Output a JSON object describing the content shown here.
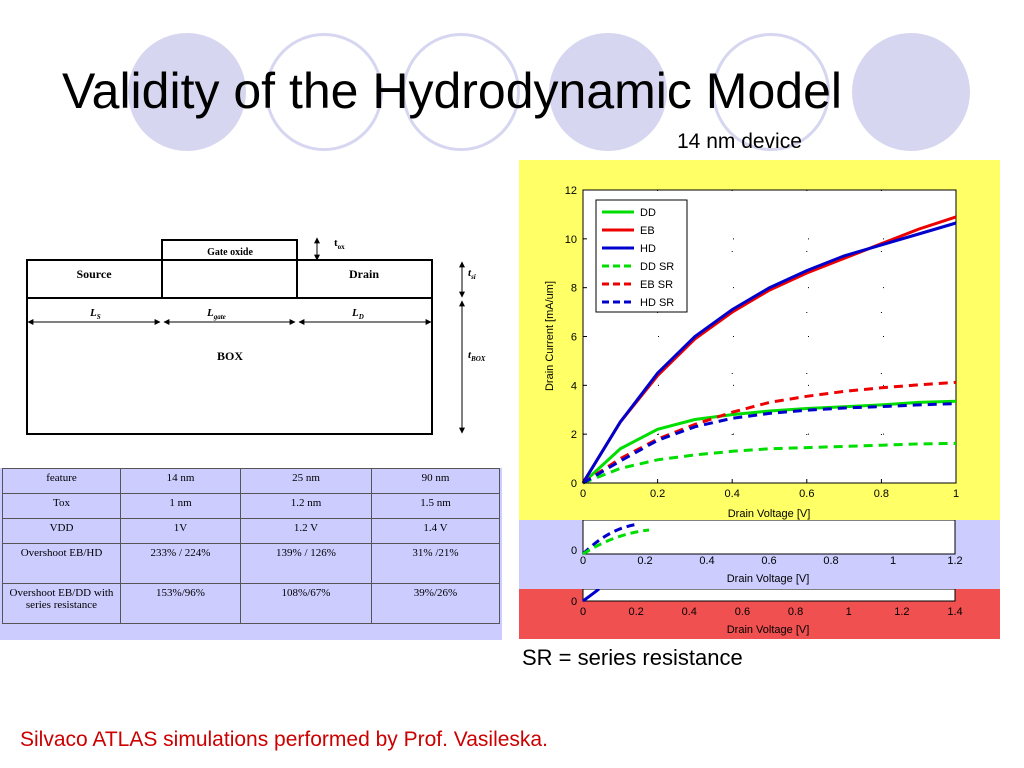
{
  "slide": {
    "title": "Validity of the Hydrodynamic Model",
    "subtitle": "14 nm device",
    "note": "SR = series resistance",
    "credit": "Silvaco ATLAS simulations performed by Prof. Vasileska.",
    "colors": {
      "circle": "#d6d6f0",
      "credit": "#cc0000",
      "yellow_panel": "#ffff66",
      "lavender_panel": "#ccccff",
      "red_panel": "#f05050",
      "table_bg": "#ccccff"
    }
  },
  "device": {
    "gate_oxide": "Gate oxide",
    "source": "Source",
    "drain": "Drain",
    "box": "BOX",
    "t_ox": "t",
    "t_ox_sub": "ox",
    "t_si": "t",
    "t_si_sub": "si",
    "t_box": "t",
    "t_box_sub": "BOX",
    "ls": "L",
    "ls_sub": "S",
    "lgate": "L",
    "lgate_sub": "gate",
    "ld": "L",
    "ld_sub": "D"
  },
  "table": {
    "headers": [
      "feature",
      "14 nm",
      "25 nm",
      "90 nm"
    ],
    "rows": [
      [
        "Tox",
        "1 nm",
        "1.2 nm",
        "1.5 nm"
      ],
      [
        "VDD",
        "1V",
        "1.2 V",
        "1.4 V"
      ],
      [
        "Overshoot EB/HD",
        "233% / 224%",
        "139% / 126%",
        "31% /21%"
      ],
      [
        "Overshoot EB/DD with series resistance",
        "153%/96%",
        "108%/67%",
        "39%/26%"
      ]
    ]
  },
  "back_charts": {
    "lavender": {
      "xlabel": "Drain Voltage [V]",
      "xticks": [
        "0",
        "0.2",
        "0.4",
        "0.6",
        "0.8",
        "1",
        "1.2"
      ],
      "y0": "0"
    },
    "red": {
      "xlabel": "Drain Voltage [V]",
      "xticks": [
        "0",
        "0.2",
        "0.4",
        "0.6",
        "0.8",
        "1",
        "1.2",
        "1.4"
      ],
      "y0": "0"
    }
  },
  "chart_data": {
    "type": "line",
    "xlabel": "Drain Voltage [V]",
    "ylabel": "Drain Current [mA/um]",
    "xlim": [
      0,
      1
    ],
    "ylim": [
      0,
      12
    ],
    "xticks": [
      0,
      0.2,
      0.4,
      0.6,
      0.8,
      1
    ],
    "yticks": [
      0,
      2,
      4,
      6,
      8,
      10,
      12
    ],
    "legend_position": "top-left",
    "x": [
      0,
      0.1,
      0.2,
      0.3,
      0.4,
      0.5,
      0.6,
      0.7,
      0.8,
      0.9,
      1.0
    ],
    "series": [
      {
        "name": "DD",
        "color": "#00dd00",
        "dash": "solid",
        "values": [
          0,
          1.4,
          2.2,
          2.6,
          2.8,
          2.95,
          3.05,
          3.12,
          3.2,
          3.3,
          3.35
        ]
      },
      {
        "name": "EB",
        "color": "#ee0000",
        "dash": "solid",
        "values": [
          0,
          2.5,
          4.4,
          5.9,
          7.0,
          7.9,
          8.6,
          9.2,
          9.8,
          10.4,
          10.9
        ]
      },
      {
        "name": "HD",
        "color": "#0000cc",
        "dash": "solid",
        "values": [
          0,
          2.5,
          4.5,
          6.0,
          7.1,
          8.0,
          8.7,
          9.3,
          9.75,
          10.2,
          10.65
        ]
      },
      {
        "name": "DD SR",
        "color": "#00dd00",
        "dash": "dashed",
        "values": [
          0,
          0.6,
          0.95,
          1.15,
          1.3,
          1.4,
          1.45,
          1.5,
          1.55,
          1.6,
          1.62
        ]
      },
      {
        "name": "EB SR",
        "color": "#ee0000",
        "dash": "dashed",
        "values": [
          0,
          1.0,
          1.8,
          2.4,
          2.9,
          3.3,
          3.55,
          3.75,
          3.9,
          4.02,
          4.12
        ]
      },
      {
        "name": "HD SR",
        "color": "#0000cc",
        "dash": "dashed",
        "values": [
          0,
          0.9,
          1.75,
          2.3,
          2.65,
          2.85,
          2.98,
          3.07,
          3.13,
          3.2,
          3.25
        ]
      }
    ]
  }
}
